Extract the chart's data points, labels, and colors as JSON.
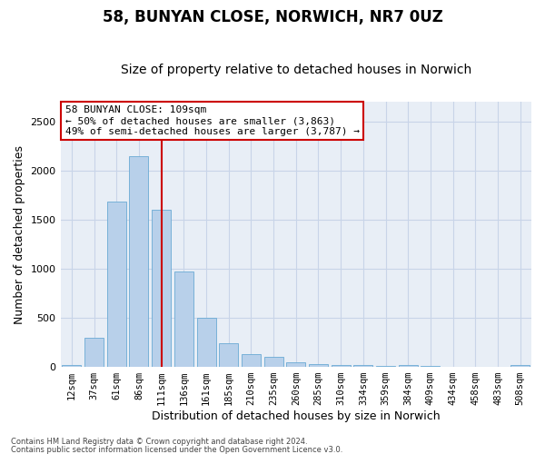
{
  "title": "58, BUNYAN CLOSE, NORWICH, NR7 0UZ",
  "subtitle": "Size of property relative to detached houses in Norwich",
  "xlabel": "Distribution of detached houses by size in Norwich",
  "ylabel": "Number of detached properties",
  "categories": [
    "12sqm",
    "37sqm",
    "61sqm",
    "86sqm",
    "111sqm",
    "136sqm",
    "161sqm",
    "185sqm",
    "210sqm",
    "235sqm",
    "260sqm",
    "285sqm",
    "310sqm",
    "334sqm",
    "359sqm",
    "384sqm",
    "409sqm",
    "434sqm",
    "458sqm",
    "483sqm",
    "508sqm"
  ],
  "values": [
    20,
    300,
    1680,
    2150,
    1600,
    970,
    500,
    245,
    130,
    105,
    45,
    30,
    20,
    15,
    10,
    20,
    10,
    5,
    5,
    5,
    20
  ],
  "bar_color": "#b8d0ea",
  "bar_edge_color": "#6aaad4",
  "grid_color": "#c8d4e8",
  "background_color": "#e8eef6",
  "vline_x_index": 4,
  "vline_color": "#cc0000",
  "annotation_text": "58 BUNYAN CLOSE: 109sqm\n← 50% of detached houses are smaller (3,863)\n49% of semi-detached houses are larger (3,787) →",
  "annotation_box_color": "#ffffff",
  "annotation_box_edge": "#cc0000",
  "footer_line1": "Contains HM Land Registry data © Crown copyright and database right 2024.",
  "footer_line2": "Contains public sector information licensed under the Open Government Licence v3.0.",
  "ylim": [
    0,
    2700
  ],
  "title_fontsize": 12,
  "subtitle_fontsize": 10,
  "tick_fontsize": 7.5,
  "ylabel_fontsize": 9,
  "xlabel_fontsize": 9
}
